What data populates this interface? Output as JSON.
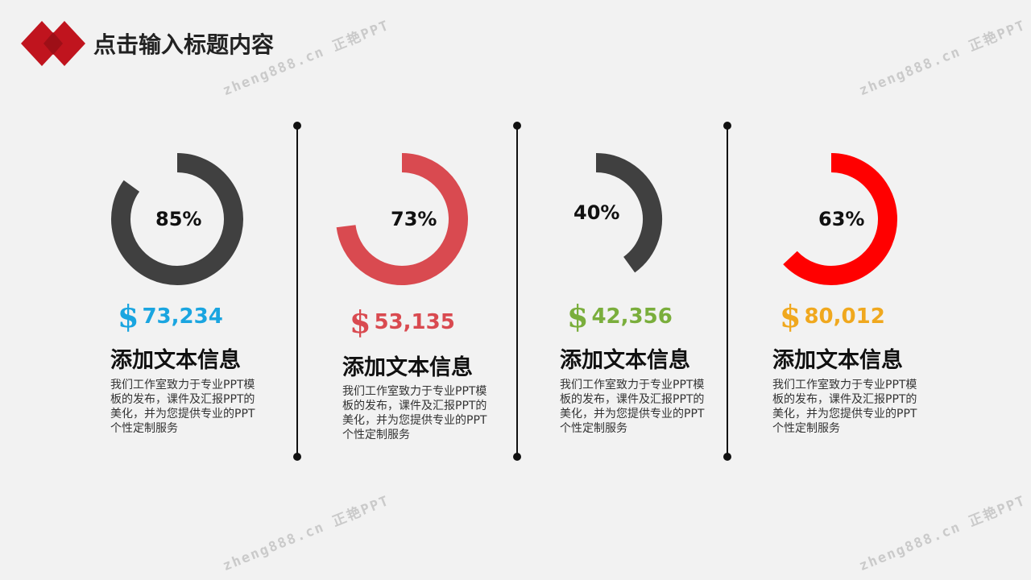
{
  "header": {
    "title": "点击输入标题内容",
    "logo_colors": [
      "#c0141e",
      "#9e0f17"
    ]
  },
  "watermarks": [
    "zheng888.cn 正艳PPT",
    "zheng888.cn 正艳PPT",
    "zheng888.cn 正艳PPT",
    "zheng888.cn 正艳PPT"
  ],
  "cards": [
    {
      "percent_label": "85%",
      "percent": 85,
      "ring_color": "#404040",
      "amount": "73,234",
      "amount_color": "#1aa5e0",
      "currency_icon": "dollar-icon",
      "title": "添加文本信息",
      "body": "我们工作室致力于专业PPT模板的发布，课件及汇报PPT的美化，并为您提供专业的PPT个性定制服务"
    },
    {
      "percent_label": "73%",
      "percent": 73,
      "ring_color": "#d94a50",
      "amount": "53,135",
      "amount_color": "#d94a50",
      "currency_icon": "dollar-icon",
      "title": "添加文本信息",
      "body": "我们工作室致力于专业PPT模板的发布，课件及汇报PPT的美化，并为您提供专业的PPT个性定制服务"
    },
    {
      "percent_label": "40%",
      "percent": 40,
      "ring_color": "#404040",
      "amount": "42,356",
      "amount_color": "#7aae3c",
      "currency_icon": "dollar-icon",
      "title": "添加文本信息",
      "body": "我们工作室致力于专业PPT模板的发布，课件及汇报PPT的美化，并为您提供专业的PPT个性定制服务"
    },
    {
      "percent_label": "63%",
      "percent": 63,
      "ring_color": "#ff0000",
      "amount": "80,012",
      "amount_color": "#f0a81e",
      "currency_icon": "dollar-icon",
      "title": "添加文本信息",
      "body": "我们工作室致力于专业PPT模板的发布，课件及汇报PPT的美化，并为您提供专业的PPT个性定制服务"
    }
  ]
}
